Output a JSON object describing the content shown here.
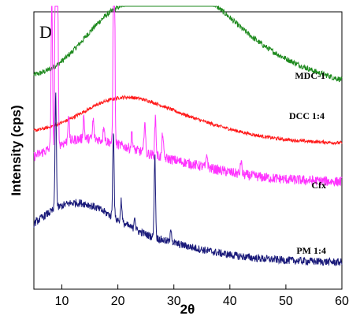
{
  "chart_data": {
    "type": "line",
    "panel_label": "D",
    "xlabel": "2θ",
    "ylabel": "Intensity (cps)",
    "xlim": [
      5,
      60
    ],
    "x_ticks": [
      10,
      20,
      30,
      40,
      50,
      60
    ],
    "y_ticks_shown": false,
    "series": [
      {
        "name": "MDC-1",
        "color": "#1e8a1e",
        "baseline": 0.76,
        "noise": 0.01,
        "humps": [
          [
            19,
            6,
            0.19
          ],
          [
            32,
            7.5,
            0.26
          ],
          [
            44,
            10,
            0.1
          ]
        ],
        "peaks": []
      },
      {
        "name": "DCC 1:4",
        "color": "#ff1a1a",
        "baseline": 0.56,
        "noise": 0.006,
        "humps": [
          [
            20,
            7,
            0.11
          ],
          [
            31,
            9,
            0.06
          ]
        ],
        "peaks": []
      },
      {
        "name": "Cfx",
        "color": "#ff33ff",
        "baseline": 0.42,
        "noise": 0.018,
        "humps": [
          [
            13,
            7,
            0.1
          ],
          [
            26,
            10,
            0.06
          ]
        ],
        "peaks": [
          [
            8.2,
            0.58
          ],
          [
            8.9,
            1.22
          ],
          [
            9.2,
            0.9
          ],
          [
            11.2,
            0.1
          ],
          [
            13.9,
            0.08
          ],
          [
            15.6,
            0.07
          ],
          [
            17.5,
            0.06
          ],
          [
            19.3,
            1.3
          ],
          [
            22.5,
            0.06
          ],
          [
            24.8,
            0.12
          ],
          [
            26.7,
            0.14
          ],
          [
            28.0,
            0.09
          ],
          [
            35.9,
            0.05
          ],
          [
            42.0,
            0.05
          ]
        ]
      },
      {
        "name": "PM 1:4",
        "color": "#1a1a7a",
        "baseline": 0.13,
        "noise": 0.014,
        "humps": [
          [
            12,
            7,
            0.17
          ],
          [
            26,
            9,
            0.05
          ]
        ],
        "peaks": [
          [
            8.9,
            0.42
          ],
          [
            19.2,
            0.32
          ],
          [
            26.6,
            0.3
          ],
          [
            20.6,
            0.08
          ],
          [
            23.0,
            0.05
          ],
          [
            29.5,
            0.05
          ]
        ]
      }
    ]
  }
}
